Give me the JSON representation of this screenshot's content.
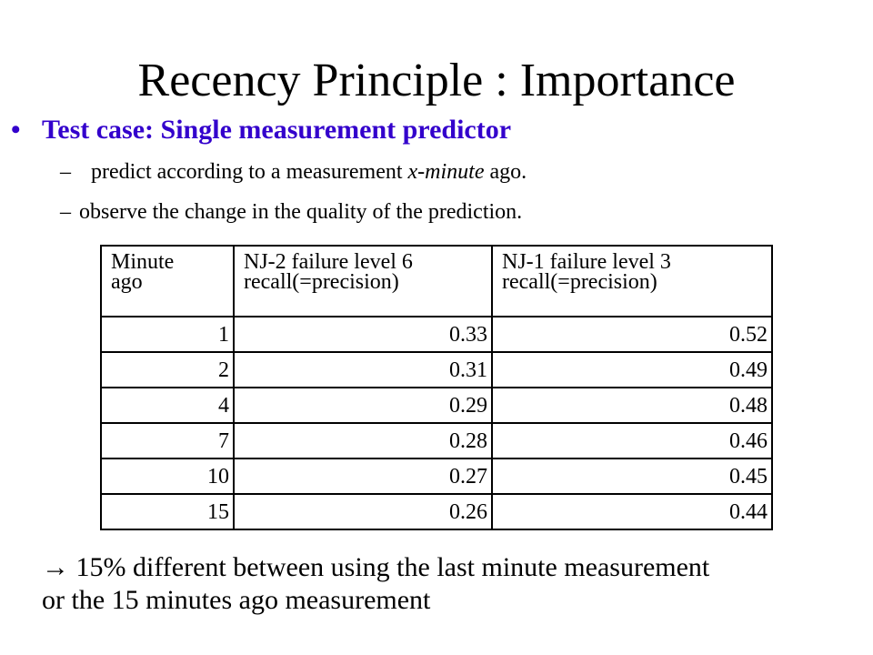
{
  "title": "Recency Principle : Importance",
  "bullet": {
    "marker": "•",
    "text": "Test case: Single measurement predictor",
    "color": "#3300cc"
  },
  "sub_items": [
    {
      "dash": "–",
      "before": "predict according to a measurement ",
      "emphasis": "x-minute",
      "after": " ago."
    },
    {
      "dash": "–",
      "text": "observe the change in the quality of the prediction."
    }
  ],
  "table": {
    "headers": [
      [
        "Minute",
        "ago"
      ],
      [
        "NJ-2 failure level 6",
        "recall(=precision)"
      ],
      [
        "NJ-1 failure level 3",
        "recall(=precision)"
      ]
    ],
    "rows": [
      [
        "1",
        "0.33",
        "0.52"
      ],
      [
        "2",
        "0.31",
        "0.49"
      ],
      [
        "4",
        "0.29",
        "0.48"
      ],
      [
        "7",
        "0.28",
        "0.46"
      ],
      [
        "10",
        "0.27",
        "0.45"
      ],
      [
        "15",
        "0.26",
        "0.44"
      ]
    ]
  },
  "conclusion": {
    "arrow": "→",
    "line1": " 15% different between using the last minute measurement",
    "line2": "or  the 15 minutes ago measurement"
  }
}
